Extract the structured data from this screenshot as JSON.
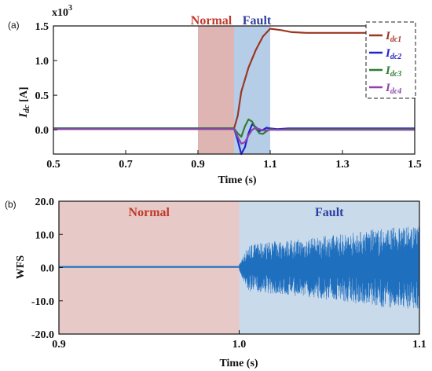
{
  "chart_data": [
    {
      "panel": "(a)",
      "type": "line",
      "ylabel_main": "I",
      "ylabel_sub": "dc",
      "ylabel_unit": " [A]",
      "y_multiplier": "x10",
      "y_multiplier_exp": "3",
      "xlabel": "Time (s)",
      "xlim": [
        0.5,
        1.5
      ],
      "ylim": [
        -0.35,
        1.5
      ],
      "xticks": [
        "0.5",
        "0.7",
        "0.9",
        "1.1",
        "1.3",
        "1.5"
      ],
      "yticks": [
        "0.0",
        "0.5",
        "1.0",
        "1.5"
      ],
      "regions": [
        {
          "label": "Normal",
          "x": [
            0.9,
            1.0
          ],
          "color": "#d9a8a6",
          "label_color": "#c0392b"
        },
        {
          "label": "Fault",
          "x": [
            1.0,
            1.1
          ],
          "color": "#a9c4e4",
          "label_color": "#2c3fa0"
        }
      ],
      "legend_position": "top-right",
      "series": [
        {
          "name": "I",
          "sub": "dc1",
          "color": "#9e3522",
          "x": [
            0.5,
            1.0,
            1.01,
            1.02,
            1.04,
            1.06,
            1.08,
            1.1,
            1.13,
            1.16,
            1.2,
            1.3,
            1.4,
            1.5
          ],
          "y": [
            0.02,
            0.02,
            0.2,
            0.55,
            0.9,
            1.15,
            1.35,
            1.46,
            1.44,
            1.41,
            1.4,
            1.4,
            1.4,
            1.4
          ]
        },
        {
          "name": "I",
          "sub": "dc2",
          "color": "#2222cc",
          "x": [
            0.5,
            1.0,
            1.01,
            1.02,
            1.03,
            1.04,
            1.05,
            1.06,
            1.07,
            1.08,
            1.09,
            1.1,
            1.12,
            1.15,
            1.2,
            1.5
          ],
          "y": [
            0.02,
            0.02,
            -0.15,
            -0.35,
            -0.25,
            -0.05,
            0.08,
            0.04,
            -0.02,
            0.0,
            0.03,
            0.02,
            0.01,
            0.02,
            0.02,
            0.02
          ]
        },
        {
          "name": "I",
          "sub": "dc3",
          "color": "#2e7d32",
          "x": [
            0.5,
            1.0,
            1.01,
            1.02,
            1.03,
            1.04,
            1.05,
            1.06,
            1.07,
            1.08,
            1.09,
            1.1,
            1.12,
            1.15,
            1.2,
            1.5
          ],
          "y": [
            0.02,
            0.02,
            -0.05,
            -0.1,
            0.05,
            0.15,
            0.12,
            0.02,
            -0.05,
            -0.06,
            -0.02,
            0.01,
            0.0,
            0.01,
            0.01,
            0.01
          ]
        },
        {
          "name": "I",
          "sub": "dc4",
          "color": "#8e44ad",
          "x": [
            0.5,
            1.0,
            1.01,
            1.02,
            1.03,
            1.04,
            1.05,
            1.06,
            1.07,
            1.08,
            1.1,
            1.12,
            1.2,
            1.5
          ],
          "y": [
            0.01,
            0.01,
            -0.1,
            -0.2,
            -0.18,
            -0.08,
            0.0,
            0.03,
            0.01,
            -0.01,
            0.0,
            0.0,
            0.0,
            0.0
          ]
        }
      ]
    },
    {
      "panel": "(b)",
      "type": "line",
      "ylabel": "WFS",
      "xlabel": "Time (s)",
      "xlim": [
        0.9,
        1.1
      ],
      "ylim": [
        -20.0,
        20.0
      ],
      "xticks": [
        "0.9",
        "1.0",
        "1.1"
      ],
      "yticks": [
        "-20.0",
        "-10.0",
        "0.0",
        "10.0",
        "20.0"
      ],
      "regions": [
        {
          "label": "Normal",
          "x": [
            0.9,
            1.0
          ],
          "color": "#e3c1bd",
          "label_color": "#c0392b"
        },
        {
          "label": "Fault",
          "x": [
            1.0,
            1.1
          ],
          "color": "#bfd3e8",
          "label_color": "#2c3fa0"
        }
      ],
      "series": [
        {
          "color": "#1f6fbf",
          "normal_level": 0.2,
          "envelope": [
            {
              "x": 1.0,
              "a": 1.0
            },
            {
              "x": 1.005,
              "a": 7.0
            },
            {
              "x": 1.02,
              "a": 8.0
            },
            {
              "x": 1.04,
              "a": 9.0
            },
            {
              "x": 1.06,
              "a": 10.5
            },
            {
              "x": 1.08,
              "a": 12.0
            },
            {
              "x": 1.1,
              "a": 12.5
            }
          ]
        }
      ]
    }
  ]
}
